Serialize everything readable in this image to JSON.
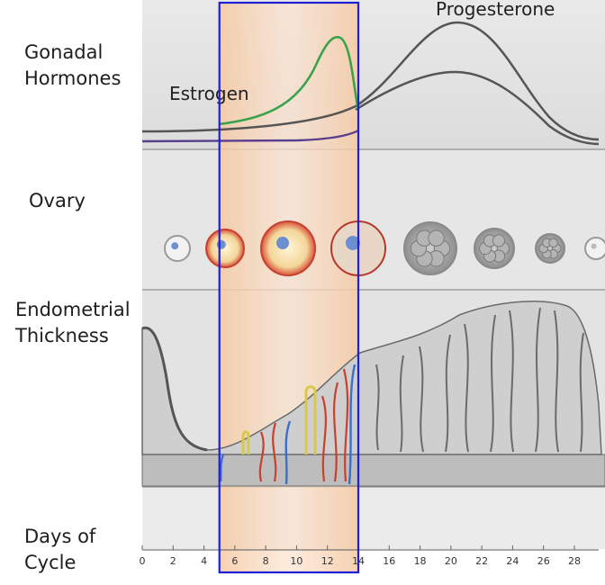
{
  "rows": {
    "hormones": "Gonadal\nHormones",
    "ovary": "Ovary",
    "endometrium": "Endometrial\nThickness",
    "days": "Days of\nCycle"
  },
  "hormones": {
    "estrogen_label": "Estrogen",
    "progesterone_label": "Progesterone",
    "estrogen_color": "#3aa34a",
    "progesterone_color": "#5a5a5a",
    "baseline_color": "#5a3f8f"
  },
  "highlight": {
    "start_day": 5,
    "end_day": 14,
    "border_color": "#1f1fd6",
    "fill_color": "#f7d2b2"
  },
  "days_axis": {
    "min": 0,
    "max": 28,
    "ticks": [
      "0",
      "2",
      "4",
      "6",
      "8",
      "10",
      "12",
      "14",
      "16",
      "18",
      "20",
      "22",
      "24",
      "26",
      "28"
    ]
  },
  "ovary": {
    "stages": [
      "primordial-follicle",
      "primary-follicle",
      "secondary-follicle",
      "ovulation",
      "corpus-luteum",
      "corpus-luteum-regressing",
      "corpus-albicans",
      "corpus-albicans-small"
    ]
  }
}
